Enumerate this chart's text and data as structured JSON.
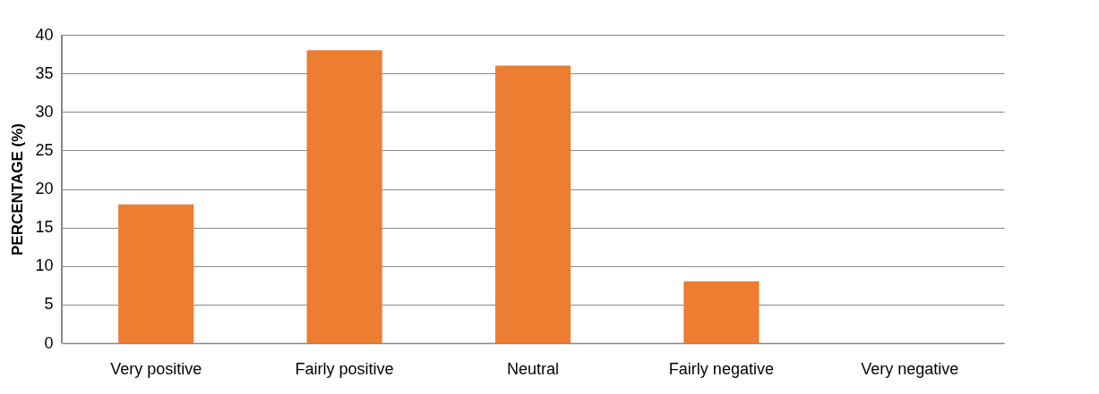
{
  "chart_data": {
    "type": "bar",
    "ylabel": "PERCENTAGE (%)",
    "categories": [
      "Very positive",
      "Fairly positive",
      "Neutral",
      "Fairly negative",
      "Very negative"
    ],
    "values": [
      18,
      38,
      36,
      8,
      0
    ],
    "color": "#ed7d31",
    "ylim": [
      0,
      40
    ],
    "yticks": [
      0,
      5,
      10,
      15,
      20,
      25,
      30,
      35,
      40
    ],
    "grid": "y"
  }
}
